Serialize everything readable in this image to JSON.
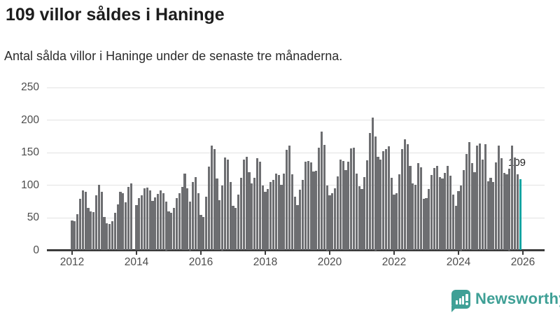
{
  "header": {
    "title": "109 villor såldes i Haninge",
    "subtitle": "Antal sålda villor i Haninge under de senaste tre månaderna."
  },
  "chart_data": {
    "type": "bar",
    "title": "109 villor såldes i Haninge",
    "subtitle": "Antal sålda villor i Haninge under de senaste tre månaderna.",
    "x_start_month": "2012-01",
    "x_end_month": "2025-12",
    "x_frequency": "monthly",
    "gap_months": [
      "2013-12"
    ],
    "xlabel": "",
    "ylabel": "",
    "ylim": [
      0,
      250
    ],
    "yticks": [
      0,
      50,
      100,
      150,
      200,
      250
    ],
    "xticks": [
      2012,
      2014,
      2016,
      2018,
      2020,
      2022,
      2024,
      2026
    ],
    "grid": "horizontal",
    "bar_color": "#6d6e71",
    "highlight_color": "#0da5a2",
    "highlight_index": 167,
    "annotation": {
      "text": "109",
      "value": 109,
      "month": "2025-12"
    },
    "values": [
      46,
      45,
      55,
      79,
      92,
      90,
      65,
      60,
      59,
      84,
      101,
      90,
      51,
      41,
      40,
      45,
      57,
      70,
      90,
      88,
      74,
      97,
      103,
      0,
      69,
      80,
      84,
      95,
      96,
      92,
      76,
      81,
      87,
      92,
      88,
      75,
      60,
      58,
      65,
      80,
      88,
      97,
      118,
      95,
      75,
      105,
      112,
      88,
      54,
      51,
      82,
      129,
      161,
      155,
      110,
      77,
      100,
      143,
      139,
      105,
      68,
      65,
      85,
      111,
      139,
      144,
      120,
      103,
      111,
      141,
      136,
      99,
      90,
      94,
      105,
      108,
      118,
      116,
      101,
      118,
      154,
      161,
      117,
      82,
      69,
      93,
      108,
      136,
      137,
      135,
      121,
      122,
      157,
      182,
      162,
      100,
      84,
      88,
      95,
      113,
      139,
      137,
      123,
      136,
      156,
      158,
      118,
      98,
      94,
      112,
      138,
      180,
      204,
      175,
      144,
      139,
      152,
      155,
      160,
      111,
      85,
      88,
      117,
      155,
      170,
      163,
      130,
      103,
      101,
      134,
      127,
      79,
      80,
      94,
      116,
      126,
      130,
      112,
      110,
      119,
      130,
      114,
      86,
      68,
      91,
      100,
      123,
      148,
      166,
      134,
      120,
      161,
      164,
      139,
      163,
      106,
      111,
      105,
      135,
      161,
      141,
      119,
      117,
      125,
      161,
      143,
      117,
      109
    ]
  },
  "footer": {
    "brand": "Newsworthy"
  }
}
